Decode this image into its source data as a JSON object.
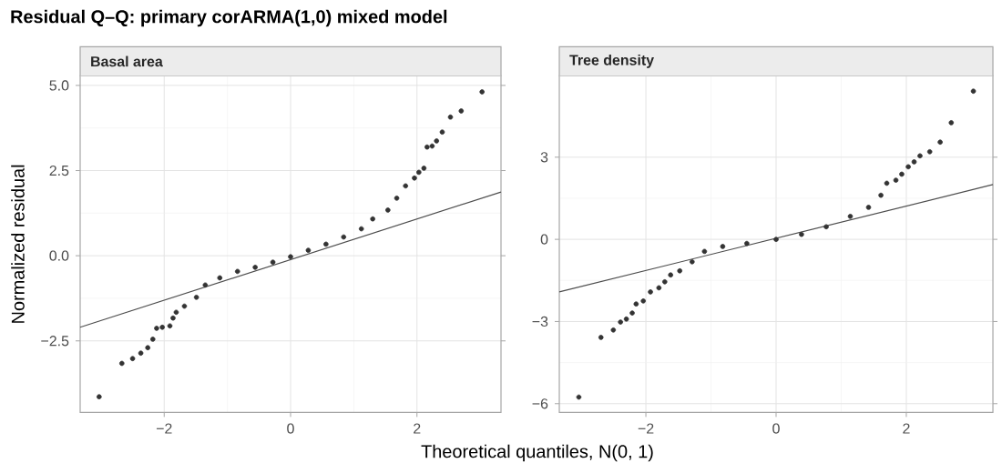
{
  "chart_data": [
    {
      "type": "scatter",
      "title": "Residual Q–Q: primary corARMA(1,0) mixed model",
      "subtitle": "Basal area",
      "xlabel": "Theoretical quantiles, N(0, 1)",
      "ylabel": "Normalized residual",
      "grid": true,
      "xlim": [
        -3.33,
        3.33
      ],
      "ylim": [
        -4.6,
        5.28
      ],
      "xticks": [
        {
          "value": -2,
          "label": "−2"
        },
        0,
        2
      ],
      "yticks": [
        {
          "value": -2.5,
          "label": "−2.5"
        },
        {
          "value": 0,
          "label": "0.0"
        },
        {
          "value": 2.5,
          "label": "2.5"
        },
        {
          "value": 5,
          "label": "5.0"
        }
      ],
      "series": [
        {
          "color": "#333333",
          "marker": "circle",
          "x": [
            -3.03,
            -2.67,
            -2.5,
            -2.37,
            -2.26,
            -2.18,
            -2.12,
            -2.03,
            -1.91,
            -1.86,
            -1.81,
            -1.68,
            -1.49,
            -1.35,
            -1.12,
            -0.84,
            -0.56,
            -0.28,
            0,
            0.28,
            0.56,
            0.84,
            1.12,
            1.3,
            1.54,
            1.68,
            1.82,
            1.96,
            2.03,
            2.11,
            2.16,
            2.24,
            2.31,
            2.4,
            2.53,
            2.7,
            3.03
          ],
          "values": [
            -4.14,
            -3.16,
            -3.02,
            -2.86,
            -2.7,
            -2.45,
            -2.13,
            -2.1,
            -2.06,
            -1.83,
            -1.66,
            -1.48,
            -1.22,
            -0.86,
            -0.65,
            -0.46,
            -0.34,
            -0.19,
            -0.03,
            0.16,
            0.34,
            0.55,
            0.79,
            1.08,
            1.34,
            1.69,
            2.05,
            2.28,
            2.45,
            2.57,
            3.19,
            3.22,
            3.37,
            3.63,
            4.07,
            4.25,
            4.81
          ]
        },
        {
          "type": "line",
          "marker": "none",
          "color": "#4d4d4d",
          "x": [
            -3.33,
            3.33
          ],
          "values": [
            -2.1,
            1.87
          ]
        }
      ]
    },
    {
      "type": "scatter",
      "subtitle": "Tree density",
      "grid": true,
      "xlim": [
        -3.33,
        3.33
      ],
      "ylim": [
        -6.32,
        5.97
      ],
      "xticks": [
        {
          "value": -2,
          "label": "−2"
        },
        0,
        2
      ],
      "yticks": [
        {
          "value": -6,
          "label": "−6"
        },
        {
          "value": -3,
          "label": "−3"
        },
        0,
        3
      ],
      "series": [
        {
          "color": "#333333",
          "marker": "circle",
          "x": [
            -3.03,
            -2.69,
            -2.5,
            -2.39,
            -2.3,
            -2.21,
            -2.15,
            -2.04,
            -1.93,
            -1.8,
            -1.71,
            -1.62,
            -1.48,
            -1.29,
            -1.1,
            -0.82,
            -0.45,
            0,
            0.39,
            0.77,
            1.14,
            1.42,
            1.61,
            1.7,
            1.84,
            1.93,
            2.03,
            2.12,
            2.21,
            2.36,
            2.52,
            2.69,
            3.03
          ],
          "values": [
            -5.76,
            -3.58,
            -3.31,
            -3.02,
            -2.91,
            -2.69,
            -2.36,
            -2.25,
            -1.92,
            -1.77,
            -1.55,
            -1.3,
            -1.15,
            -0.82,
            -0.44,
            -0.26,
            -0.15,
            0,
            0.18,
            0.46,
            0.84,
            1.17,
            1.61,
            2.05,
            2.16,
            2.38,
            2.65,
            2.83,
            3.05,
            3.2,
            3.55,
            4.26,
            5.41
          ]
        },
        {
          "type": "line",
          "marker": "none",
          "color": "#4d4d4d",
          "x": [
            -3.33,
            3.33
          ],
          "values": [
            -1.92,
            2.0
          ]
        }
      ]
    }
  ]
}
